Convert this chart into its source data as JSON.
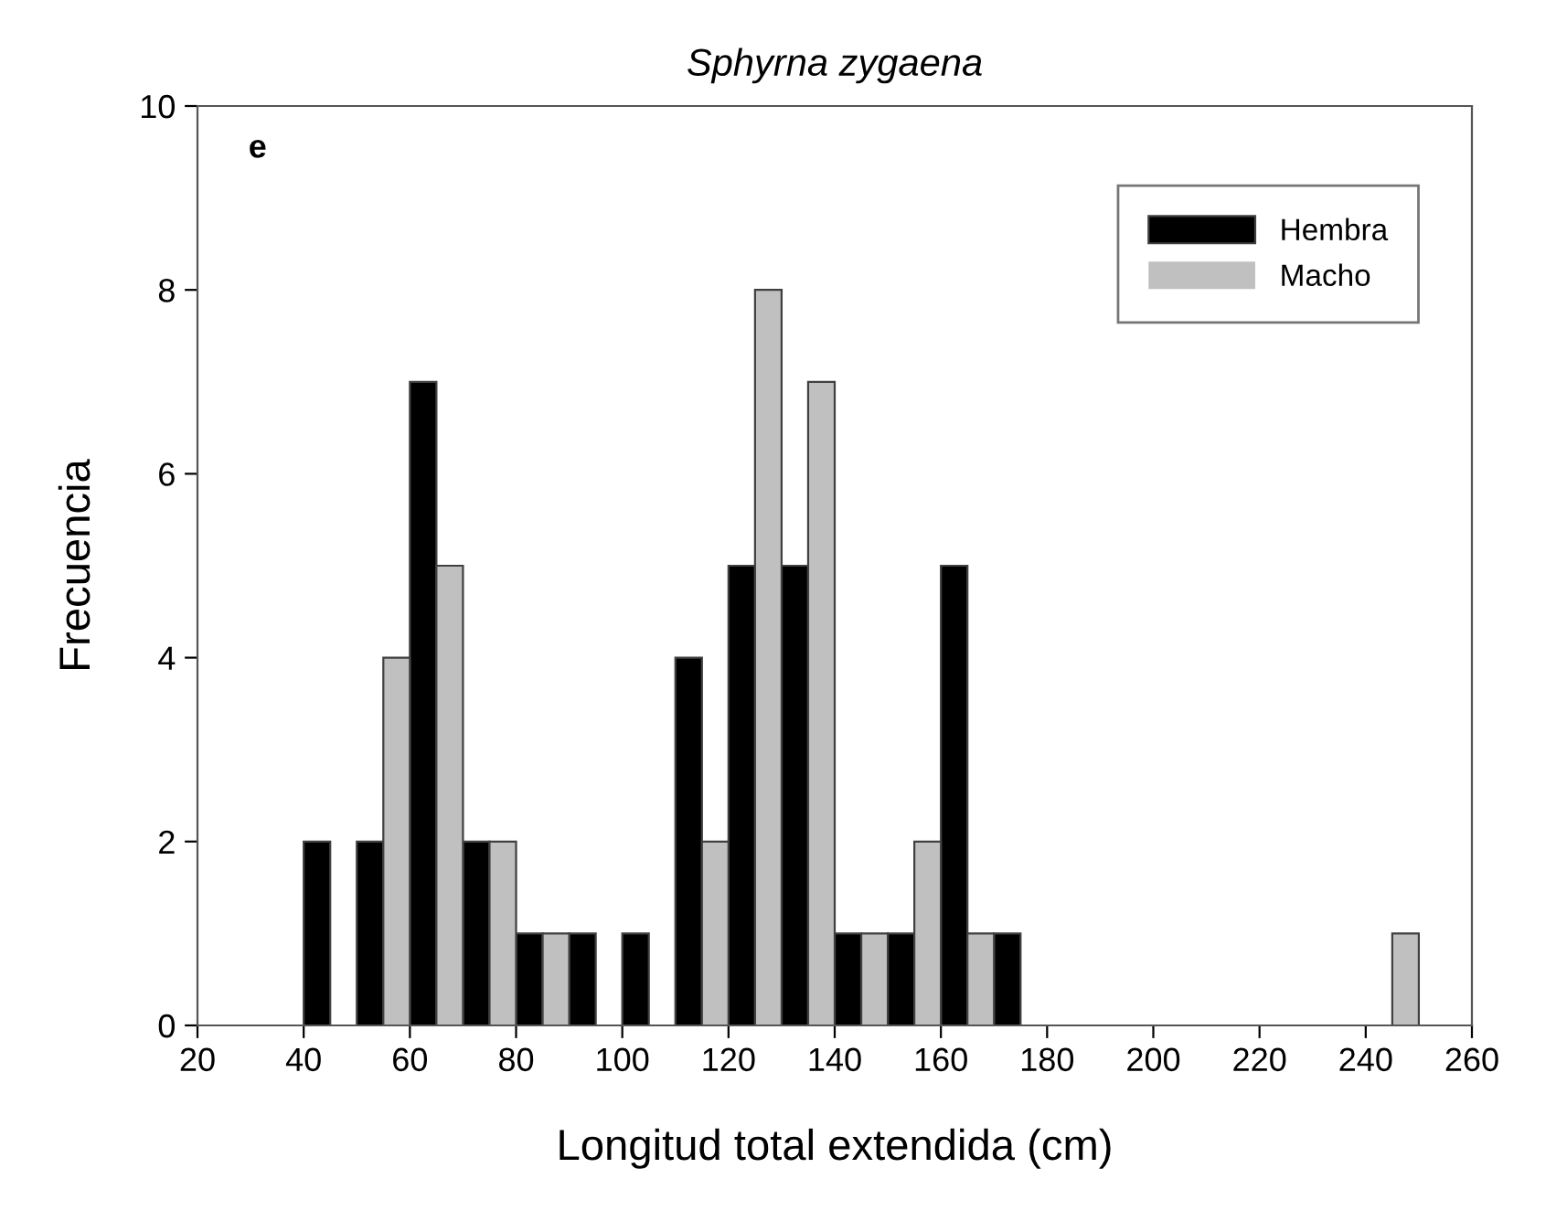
{
  "chart_data": {
    "type": "histogram",
    "title": "Sphyrna zygaena",
    "xlabel": "Longitud total extendida (cm)",
    "ylabel": "Frecuencia",
    "annotations": [
      "e"
    ],
    "bins": [
      40,
      50,
      60,
      70,
      80,
      90,
      100,
      110,
      120,
      130,
      140,
      150,
      160,
      170,
      180,
      190,
      200,
      210,
      220,
      230,
      240,
      250
    ],
    "series": [
      {
        "name": "Hembra",
        "color": "#000000",
        "values": [
          2,
          2,
          7,
          2,
          1,
          1,
          1,
          4,
          5,
          5,
          1,
          1,
          5,
          1,
          0,
          0,
          0,
          0,
          0,
          0,
          0
        ]
      },
      {
        "name": "Macho",
        "color": "#c0c0c0",
        "values": [
          0,
          4,
          5,
          2,
          1,
          0,
          0,
          2,
          8,
          7,
          1,
          2,
          1,
          0,
          0,
          0,
          0,
          0,
          0,
          0,
          1
        ]
      }
    ],
    "xlim": [
      20,
      260
    ],
    "xticks": [
      20,
      40,
      60,
      80,
      100,
      120,
      140,
      160,
      180,
      200,
      220,
      240,
      260
    ],
    "ylim": [
      0,
      10
    ],
    "yticks": [
      0,
      2,
      4,
      6,
      8,
      10
    ],
    "legend": "top right",
    "grid": false
  }
}
